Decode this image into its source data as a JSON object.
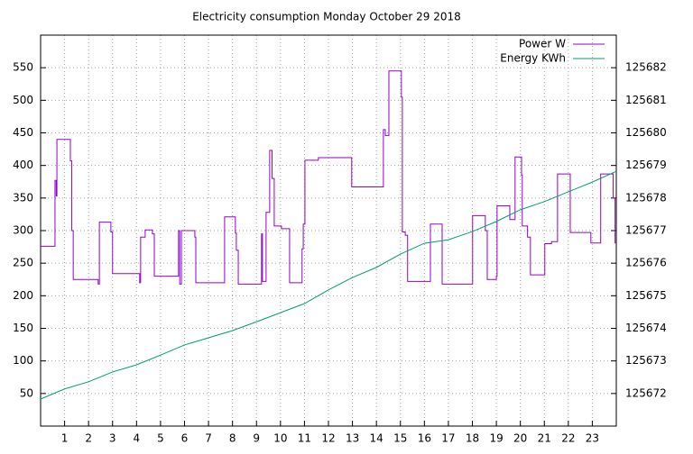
{
  "chart_data": {
    "type": "line",
    "title": "Electricity consumption Monday October 29 2018",
    "xlim": [
      0,
      24
    ],
    "xticks": [
      1,
      2,
      3,
      4,
      5,
      6,
      7,
      8,
      9,
      10,
      11,
      12,
      13,
      14,
      15,
      16,
      17,
      18,
      19,
      20,
      21,
      22,
      23
    ],
    "ylim": [
      0,
      600
    ],
    "yticks": [
      50,
      100,
      150,
      200,
      250,
      300,
      350,
      400,
      450,
      500,
      550
    ],
    "y2lim": [
      125671,
      125683
    ],
    "y2ticks": [
      125672,
      125673,
      125674,
      125675,
      125676,
      125677,
      125678,
      125679,
      125680,
      125681,
      125682
    ],
    "grid": true,
    "legend": "top-right",
    "series": [
      {
        "name": "Power W",
        "color": "#9400d3",
        "style": "steps",
        "x": [
          0,
          0.6,
          0.65,
          0.68,
          1.24,
          1.3,
          1.36,
          2.4,
          2.45,
          2.93,
          3.0,
          4.13,
          4.17,
          4.36,
          4.66,
          4.74,
          5.75,
          5.8,
          5.87,
          6.43,
          6.47,
          7.67,
          8.12,
          8.16,
          8.24,
          9.21,
          9.25,
          9.4,
          9.55,
          9.65,
          9.74,
          10.04,
          10.38,
          10.9,
          10.95,
          11.02,
          11.58,
          12.97,
          14.29,
          14.37,
          14.52,
          15.04,
          15.08,
          15.2,
          15.3,
          16.25,
          16.74,
          18.01,
          18.54,
          18.62,
          19.0,
          19.03,
          19.56,
          19.78,
          20.05,
          20.08,
          20.3,
          20.42,
          21.02,
          21.3,
          21.55,
          22.08,
          22.94,
          23.35,
          23.87,
          23.95
        ],
        "values": [
          276,
          377,
          353,
          440,
          407,
          300,
          225,
          218,
          313,
          298,
          234,
          220,
          290,
          301,
          295,
          230,
          300,
          218,
          300,
          290,
          220,
          321,
          296,
          270,
          218,
          295,
          222,
          328,
          423,
          380,
          307,
          303,
          220,
          272,
          310,
          408,
          412,
          367,
          455,
          446,
          545,
          505,
          298,
          293,
          222,
          310,
          218,
          323,
          300,
          225,
          230,
          338,
          317,
          413,
          385,
          307,
          290,
          232,
          280,
          283,
          387,
          297,
          281,
          387,
          350,
          281
        ]
      },
      {
        "name": "Energy KWh",
        "color": "#009e73",
        "axis": "y2",
        "x": [
          0,
          1,
          2,
          3,
          4,
          5,
          6,
          7,
          8,
          9,
          10,
          11,
          12,
          13,
          14,
          15,
          16,
          17,
          18,
          19,
          20,
          21,
          22,
          23,
          24
        ],
        "values": [
          125671.83,
          125672.14,
          125672.36,
          125672.66,
          125672.88,
          125673.18,
          125673.49,
          125673.71,
          125673.93,
          125674.2,
          125674.48,
          125674.76,
          125675.18,
          125675.56,
          125675.87,
          125676.28,
          125676.61,
          125676.72,
          125676.97,
          125677.28,
          125677.64,
          125677.89,
          125678.19,
          125678.49,
          125678.82
        ]
      }
    ]
  }
}
